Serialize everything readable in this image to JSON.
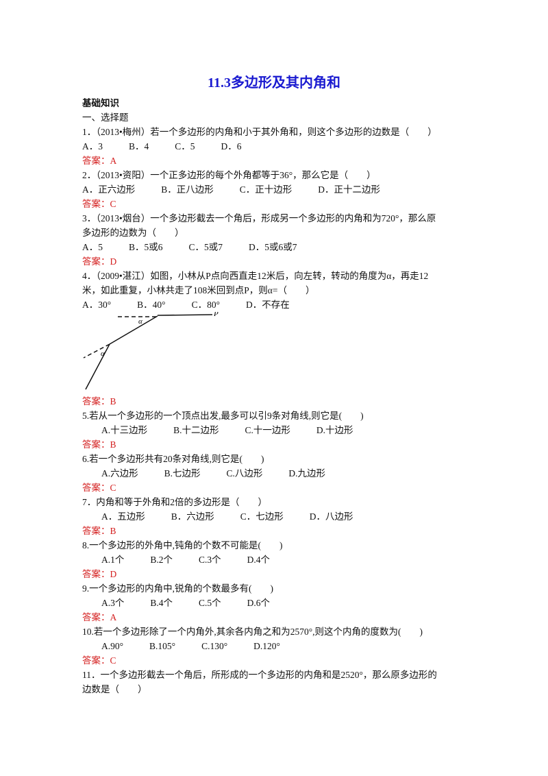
{
  "title": "11.3多边形及其内角和",
  "section": "基础知识",
  "subsection": "一、选择题",
  "questions": [
    {
      "lines": [
        "1．（2013•梅州）若一个多边形的内角和小于其外角和，则这个多边形的边数是（　　）"
      ],
      "options": [
        "A．3",
        "B．4",
        "C．5",
        "D．6"
      ],
      "answer": "答案：A"
    },
    {
      "lines": [
        "2．（2013•资阳）一个正多边形的每个外角都等于36°，那么它是（　　）"
      ],
      "options": [
        "A．正六边形",
        "B．正八边形",
        "C．正十边形",
        "D．正十二边形"
      ],
      "answer": "答案：C"
    },
    {
      "lines": [
        "3．（2013•烟台）一个多边形截去一个角后，形成另一个多边形的内角和为720°，那么原",
        "多边形的边数为（　　）"
      ],
      "options": [
        "A．5",
        "B．5或6",
        "C．5或7",
        "D．5或6或7"
      ],
      "answer": "答案：D"
    },
    {
      "lines": [
        "4．（2009•湛江）如图，小林从P点向西直走12米后，向左转，转动的角度为α，再走12",
        "米，如此重复，小林共走了108米回到点P，则α=（　　）"
      ],
      "options": [
        "A．30°",
        "B．40°",
        "C．80°",
        "D．不存在"
      ],
      "figure_labels": [
        "α",
        "α",
        "P"
      ],
      "answer": "答案：B"
    },
    {
      "lines": [
        "5.若从一个多边形的一个顶点出发,最多可以引9条对角线,则它是(　　)"
      ],
      "options": [
        "A.十三边形",
        "B.十二边形",
        "C.十一边形",
        "D.十边形"
      ],
      "answer": "答案：B"
    },
    {
      "lines": [
        "6.若一个多边形共有20条对角线,则它是(　　)"
      ],
      "options": [
        "A.六边形",
        "B.七边形",
        "C.八边形",
        "D.九边形"
      ],
      "answer": "答案：C"
    },
    {
      "lines": [
        "7．内角和等于外角和2倍的多边形是（　　）"
      ],
      "options": [
        "A．五边形",
        "B．六边形",
        "C．七边形",
        "D．八边形"
      ],
      "answer": "答案：B"
    },
    {
      "lines": [
        "8.一个多边形的外角中,钝角的个数不可能是(　　)"
      ],
      "options": [
        "A.1个",
        "B.2个",
        "C.3个",
        "D.4个"
      ],
      "answer": "答案：D"
    },
    {
      "lines": [
        "9.一个多边形的内角中,锐角的个数最多有(　　)"
      ],
      "options": [
        "A.3个",
        "B.4个",
        "C.5个",
        "D.6个"
      ],
      "answer": "答案：A"
    },
    {
      "lines": [
        "10.若一个多边形除了一个内角外,其余各内角之和为2570°,则这个内角的度数为(　　)"
      ],
      "options": [
        "A.90°",
        "B.105°",
        "C.130°",
        "D.120°"
      ],
      "answer": "答案：C"
    },
    {
      "lines": [
        "11．一个多边形截去一个角后，所形成的一个多边形的内角和是2520°，那么原多边形的",
        "边数是（　　）"
      ]
    }
  ]
}
